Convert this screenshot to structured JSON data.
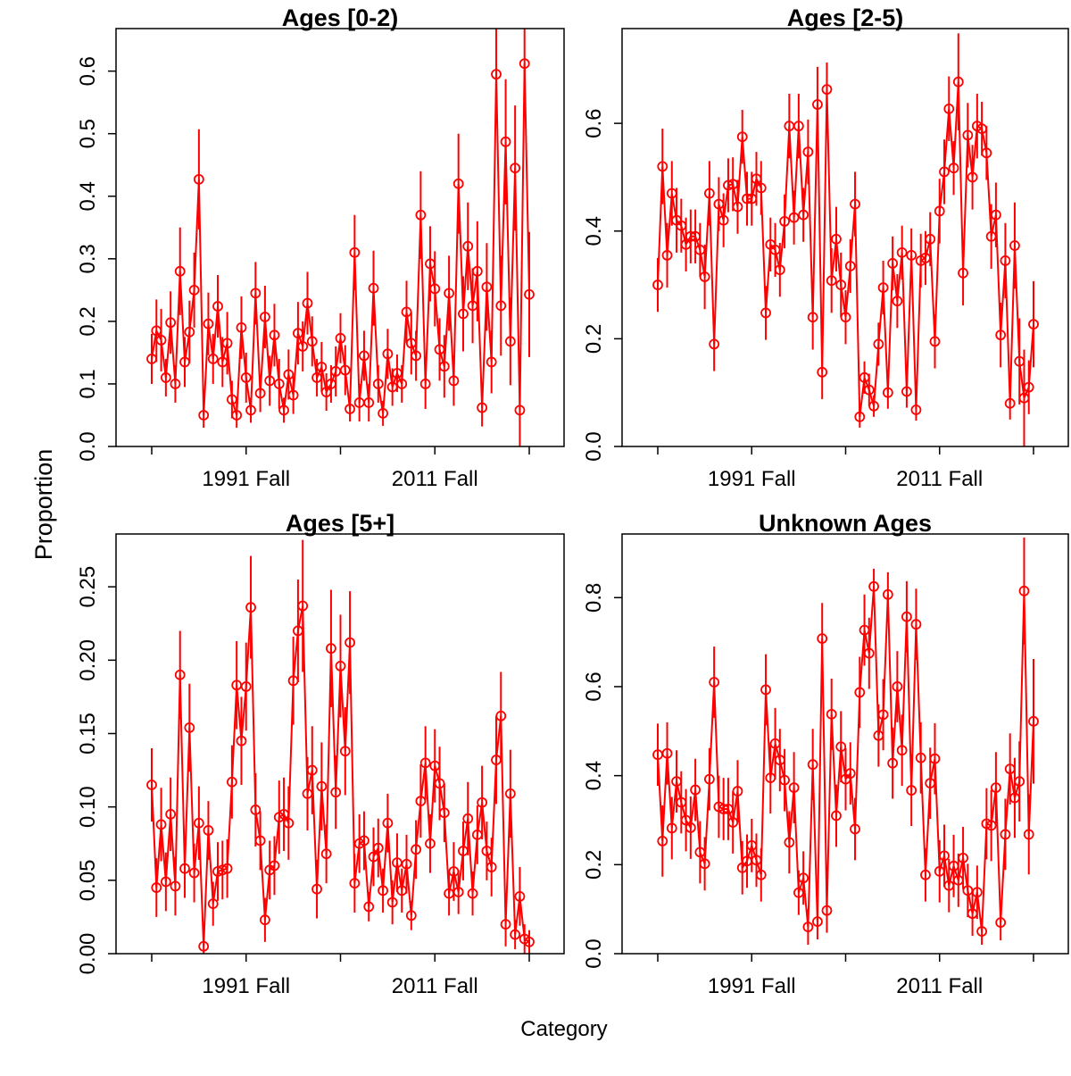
{
  "xlabel": "Category",
  "ylabel": "Proportion",
  "chart_data": [
    {
      "type": "line",
      "title": "Ages [0-2)",
      "color": "#ff0000",
      "categories": [
        null,
        null,
        null,
        null,
        null,
        null,
        null,
        null,
        null,
        null,
        null,
        null,
        null,
        null,
        null,
        null,
        null,
        null,
        null,
        null,
        "1991 Fall",
        null,
        null,
        null,
        null,
        null,
        null,
        null,
        null,
        null,
        null,
        null,
        null,
        null,
        null,
        null,
        null,
        null,
        null,
        null,
        null,
        null,
        null,
        null,
        null,
        null,
        null,
        null,
        null,
        null,
        null,
        null,
        null,
        null,
        null,
        null,
        null,
        null,
        null,
        null,
        "2011 Fall",
        null,
        null,
        null,
        null,
        null,
        null,
        null,
        null,
        null,
        null,
        null,
        null,
        null,
        null,
        null,
        null,
        null,
        null,
        null,
        null
      ],
      "values": [
        0.14,
        0.185,
        0.17,
        0.11,
        0.198,
        0.1,
        0.28,
        0.135,
        0.183,
        0.25,
        0.427,
        0.05,
        0.196,
        0.14,
        0.224,
        0.135,
        0.165,
        0.075,
        0.05,
        0.19,
        0.11,
        0.058,
        0.245,
        0.085,
        0.207,
        0.105,
        0.178,
        0.1,
        0.058,
        0.115,
        0.082,
        0.181,
        0.16,
        0.229,
        0.168,
        0.11,
        0.127,
        0.087,
        0.1,
        0.12,
        0.173,
        0.122,
        0.06,
        0.31,
        0.07,
        0.145,
        0.07,
        0.253,
        0.1,
        0.053,
        0.148,
        0.095,
        0.117,
        0.1,
        0.215,
        0.165,
        0.145,
        0.37,
        0.1,
        0.292,
        0.252,
        0.155,
        0.128,
        0.245,
        0.105,
        0.42,
        0.212,
        0.32,
        0.225,
        0.28,
        0.062,
        0.255,
        0.135,
        0.595,
        0.225,
        0.487,
        0.168,
        0.445,
        0.058,
        0.612,
        0.243
      ],
      "errors": [
        0.04,
        0.05,
        0.05,
        0.03,
        0.05,
        0.03,
        0.07,
        0.04,
        0.05,
        0.06,
        0.08,
        0.02,
        0.05,
        0.04,
        0.05,
        0.04,
        0.05,
        0.03,
        0.02,
        0.05,
        0.04,
        0.02,
        0.05,
        0.03,
        0.05,
        0.04,
        0.05,
        0.04,
        0.02,
        0.04,
        0.03,
        0.05,
        0.04,
        0.05,
        0.04,
        0.03,
        0.04,
        0.03,
        0.03,
        0.04,
        0.04,
        0.04,
        0.02,
        0.06,
        0.03,
        0.04,
        0.03,
        0.06,
        0.03,
        0.02,
        0.04,
        0.03,
        0.03,
        0.03,
        0.05,
        0.05,
        0.04,
        0.07,
        0.04,
        0.06,
        0.06,
        0.05,
        0.05,
        0.06,
        0.04,
        0.08,
        0.06,
        0.07,
        0.06,
        0.08,
        0.03,
        0.07,
        0.05,
        0.08,
        0.08,
        0.1,
        0.07,
        0.1,
        0.06,
        0.08,
        0.1
      ],
      "ylim": [
        0,
        0.668
      ],
      "yticks": [
        {
          "value": 0,
          "label": "0.0"
        },
        0.1,
        0.2,
        0.3,
        0.4,
        0.5,
        0.6
      ]
    },
    {
      "type": "line",
      "title": "Ages [2-5)",
      "color": "#ff0000",
      "categories": [
        null,
        null,
        null,
        null,
        null,
        null,
        null,
        null,
        null,
        null,
        null,
        null,
        null,
        null,
        null,
        null,
        null,
        null,
        null,
        null,
        "1991 Fall",
        null,
        null,
        null,
        null,
        null,
        null,
        null,
        null,
        null,
        null,
        null,
        null,
        null,
        null,
        null,
        null,
        null,
        null,
        null,
        null,
        null,
        null,
        null,
        null,
        null,
        null,
        null,
        null,
        null,
        null,
        null,
        null,
        null,
        null,
        null,
        null,
        null,
        null,
        null,
        "2011 Fall",
        null,
        null,
        null,
        null,
        null,
        null,
        null,
        null,
        null,
        null,
        null,
        null,
        null,
        null,
        null,
        null,
        null,
        null,
        null,
        null
      ],
      "values": [
        0.3,
        0.52,
        0.355,
        0.47,
        0.42,
        0.41,
        0.375,
        0.39,
        0.39,
        0.365,
        0.315,
        0.47,
        0.19,
        0.45,
        0.42,
        0.485,
        0.487,
        0.445,
        0.575,
        0.46,
        0.46,
        0.497,
        0.48,
        0.248,
        0.375,
        0.365,
        0.328,
        0.418,
        0.595,
        0.425,
        0.595,
        0.43,
        0.547,
        0.24,
        0.635,
        0.138,
        0.663,
        0.308,
        0.385,
        0.3,
        0.24,
        0.335,
        0.45,
        0.055,
        0.128,
        0.105,
        0.075,
        0.19,
        0.295,
        0.1,
        0.34,
        0.27,
        0.36,
        0.102,
        0.355,
        0.068,
        0.345,
        0.35,
        0.385,
        0.195,
        0.437,
        0.51,
        0.627,
        0.517,
        0.677,
        0.322,
        0.578,
        0.5,
        0.595,
        0.59,
        0.545,
        0.39,
        0.43,
        0.207,
        0.345,
        0.08,
        0.373,
        0.158,
        0.09,
        0.11,
        0.227
      ],
      "errors": [
        0.05,
        0.07,
        0.06,
        0.06,
        0.06,
        0.05,
        0.05,
        0.05,
        0.05,
        0.05,
        0.06,
        0.06,
        0.05,
        0.05,
        0.05,
        0.05,
        0.05,
        0.05,
        0.05,
        0.05,
        0.05,
        0.05,
        0.05,
        0.05,
        0.05,
        0.05,
        0.05,
        0.05,
        0.06,
        0.05,
        0.06,
        0.05,
        0.06,
        0.06,
        0.07,
        0.05,
        0.05,
        0.06,
        0.06,
        0.06,
        0.05,
        0.05,
        0.06,
        0.02,
        0.03,
        0.03,
        0.02,
        0.04,
        0.05,
        0.03,
        0.05,
        0.05,
        0.05,
        0.03,
        0.05,
        0.02,
        0.05,
        0.05,
        0.05,
        0.05,
        0.06,
        0.06,
        0.06,
        0.05,
        0.09,
        0.06,
        0.06,
        0.06,
        0.06,
        0.05,
        0.05,
        0.06,
        0.06,
        0.06,
        0.07,
        0.03,
        0.08,
        0.08,
        0.09,
        0.05,
        0.08
      ],
      "ylim": [
        0,
        0.776
      ],
      "yticks": [
        {
          "value": 0,
          "label": "0.0"
        },
        0.2,
        0.4,
        0.6
      ]
    },
    {
      "type": "line",
      "title": "Ages [5+]",
      "color": "#ff0000",
      "categories": [
        null,
        null,
        null,
        null,
        null,
        null,
        null,
        null,
        null,
        null,
        null,
        null,
        null,
        null,
        null,
        null,
        null,
        null,
        null,
        null,
        "1991 Fall",
        null,
        null,
        null,
        null,
        null,
        null,
        null,
        null,
        null,
        null,
        null,
        null,
        null,
        null,
        null,
        null,
        null,
        null,
        null,
        null,
        null,
        null,
        null,
        null,
        null,
        null,
        null,
        null,
        null,
        null,
        null,
        null,
        null,
        null,
        null,
        null,
        null,
        null,
        null,
        "2011 Fall",
        null,
        null,
        null,
        null,
        null,
        null,
        null,
        null,
        null,
        null,
        null,
        null,
        null,
        null,
        null,
        null,
        null,
        null,
        null,
        null
      ],
      "values": [
        0.115,
        0.045,
        0.088,
        0.049,
        0.095,
        0.046,
        0.19,
        0.058,
        0.154,
        0.055,
        0.089,
        0.005,
        0.084,
        0.034,
        0.056,
        0.057,
        0.058,
        0.117,
        0.183,
        0.145,
        0.182,
        0.236,
        0.098,
        0.077,
        0.023,
        0.057,
        0.06,
        0.093,
        0.095,
        0.089,
        0.186,
        0.22,
        0.237,
        0.109,
        0.125,
        0.044,
        0.114,
        0.068,
        0.208,
        0.11,
        0.196,
        0.138,
        0.212,
        0.048,
        0.075,
        0.077,
        0.032,
        0.066,
        0.072,
        0.043,
        0.089,
        0.035,
        0.062,
        0.043,
        0.061,
        0.026,
        0.071,
        0.104,
        0.13,
        0.075,
        0.128,
        0.116,
        0.096,
        0.041,
        0.056,
        0.042,
        0.07,
        0.092,
        0.041,
        0.081,
        0.103,
        0.07,
        0.059,
        0.132,
        0.162,
        0.02,
        0.109,
        0.013,
        0.039,
        0.01,
        0.008
      ],
      "errors": [
        0.025,
        0.02,
        0.025,
        0.02,
        0.025,
        0.02,
        0.03,
        0.02,
        0.03,
        0.02,
        0.025,
        0.01,
        0.02,
        0.015,
        0.02,
        0.02,
        0.02,
        0.025,
        0.03,
        0.03,
        0.03,
        0.035,
        0.025,
        0.02,
        0.015,
        0.02,
        0.02,
        0.025,
        0.025,
        0.025,
        0.03,
        0.035,
        0.045,
        0.025,
        0.03,
        0.02,
        0.03,
        0.02,
        0.04,
        0.025,
        0.035,
        0.03,
        0.035,
        0.02,
        0.02,
        0.02,
        0.01,
        0.02,
        0.02,
        0.015,
        0.02,
        0.015,
        0.02,
        0.015,
        0.02,
        0.01,
        0.02,
        0.025,
        0.025,
        0.02,
        0.025,
        0.025,
        0.02,
        0.015,
        0.02,
        0.015,
        0.02,
        0.025,
        0.015,
        0.02,
        0.025,
        0.02,
        0.02,
        0.03,
        0.03,
        0.015,
        0.03,
        0.01,
        0.02,
        0.01,
        0.008
      ],
      "ylim": [
        0,
        0.286
      ],
      "yticks": [
        {
          "value": 0,
          "label": "0.00"
        },
        {
          "value": 0.05,
          "label": "0.05"
        },
        {
          "value": 0.1,
          "label": "0.10"
        },
        {
          "value": 0.15,
          "label": "0.15"
        },
        {
          "value": 0.2,
          "label": "0.20"
        },
        {
          "value": 0.25,
          "label": "0.25"
        }
      ]
    },
    {
      "type": "line",
      "title": "Unknown Ages",
      "color": "#ff0000",
      "categories": [
        null,
        null,
        null,
        null,
        null,
        null,
        null,
        null,
        null,
        null,
        null,
        null,
        null,
        null,
        null,
        null,
        null,
        null,
        null,
        null,
        "1991 Fall",
        null,
        null,
        null,
        null,
        null,
        null,
        null,
        null,
        null,
        null,
        null,
        null,
        null,
        null,
        null,
        null,
        null,
        null,
        null,
        null,
        null,
        null,
        null,
        null,
        null,
        null,
        null,
        null,
        null,
        null,
        null,
        null,
        null,
        null,
        null,
        null,
        null,
        null,
        null,
        "2011 Fall",
        null,
        null,
        null,
        null,
        null,
        null,
        null,
        null,
        null,
        null,
        null,
        null,
        null,
        null,
        null,
        null,
        null,
        null,
        null,
        null
      ],
      "values": [
        0.447,
        0.253,
        0.45,
        0.282,
        0.387,
        0.34,
        0.3,
        0.283,
        0.368,
        0.228,
        0.202,
        0.392,
        0.61,
        0.33,
        0.325,
        0.325,
        0.295,
        0.365,
        0.193,
        0.208,
        0.243,
        0.21,
        0.177,
        0.593,
        0.395,
        0.472,
        0.435,
        0.39,
        0.25,
        0.373,
        0.137,
        0.17,
        0.06,
        0.425,
        0.072,
        0.708,
        0.097,
        0.538,
        0.31,
        0.465,
        0.392,
        0.405,
        0.28,
        0.587,
        0.727,
        0.675,
        0.825,
        0.49,
        0.537,
        0.807,
        0.428,
        0.6,
        0.457,
        0.757,
        0.367,
        0.74,
        0.44,
        0.177,
        0.383,
        0.438,
        0.185,
        0.22,
        0.153,
        0.197,
        0.165,
        0.215,
        0.142,
        0.09,
        0.138,
        0.05,
        0.292,
        0.288,
        0.373,
        0.07,
        0.268,
        0.415,
        0.35,
        0.387,
        0.815,
        0.268,
        0.522
      ],
      "errors": [
        0.07,
        0.08,
        0.07,
        0.07,
        0.07,
        0.07,
        0.07,
        0.07,
        0.07,
        0.07,
        0.06,
        0.07,
        0.08,
        0.07,
        0.07,
        0.07,
        0.07,
        0.07,
        0.06,
        0.06,
        0.06,
        0.06,
        0.06,
        0.08,
        0.08,
        0.08,
        0.07,
        0.07,
        0.07,
        0.08,
        0.05,
        0.06,
        0.04,
        0.08,
        0.04,
        0.08,
        0.05,
        0.08,
        0.07,
        0.08,
        0.07,
        0.07,
        0.07,
        0.08,
        0.08,
        0.08,
        0.04,
        0.07,
        0.08,
        0.05,
        0.08,
        0.08,
        0.08,
        0.08,
        0.08,
        0.08,
        0.08,
        0.06,
        0.08,
        0.08,
        0.07,
        0.07,
        0.06,
        0.07,
        0.06,
        0.07,
        0.06,
        0.05,
        0.06,
        0.03,
        0.08,
        0.08,
        0.08,
        0.04,
        0.08,
        0.08,
        0.09,
        0.09,
        0.12,
        0.09,
        0.14
      ],
      "ylim": [
        0,
        0.943
      ],
      "yticks": [
        {
          "value": 0,
          "label": "0.0"
        },
        0.2,
        0.4,
        0.6,
        0.8
      ]
    }
  ]
}
